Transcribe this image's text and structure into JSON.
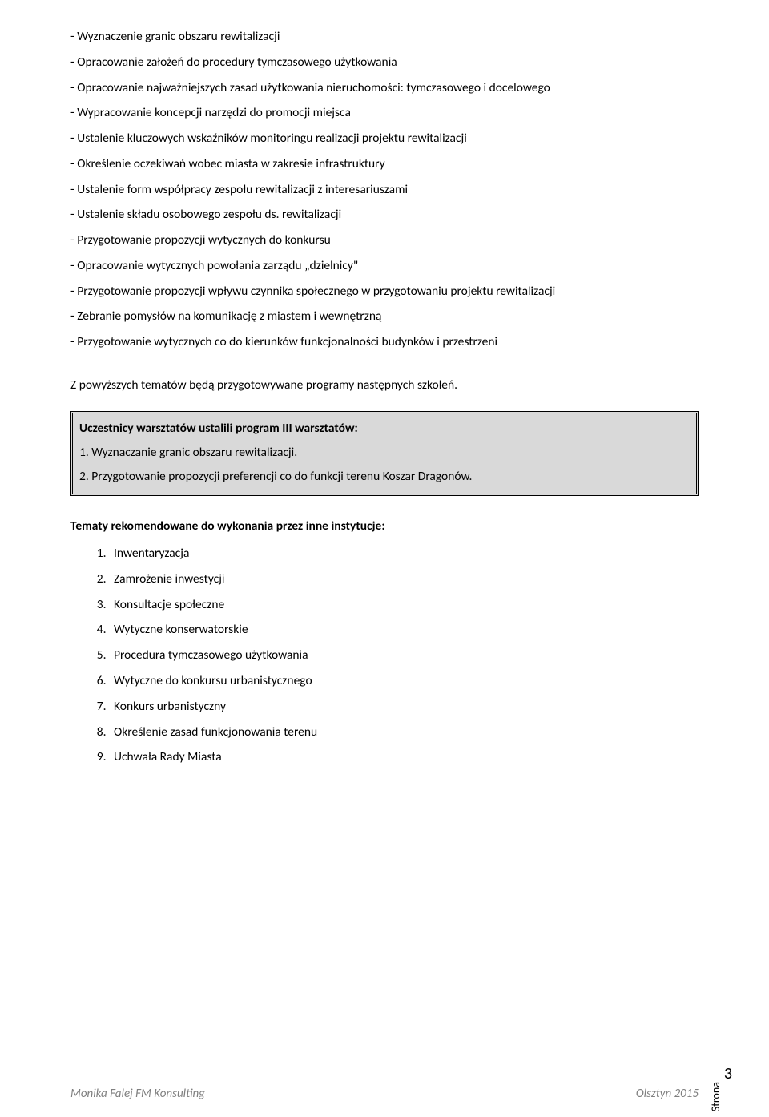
{
  "bullets": [
    "- Wyznaczenie granic obszaru rewitalizacji",
    "- Opracowanie założeń do procedury tymczasowego użytkowania",
    "- Opracowanie najważniejszych zasad użytkowania nieruchomości: tymczasowego i docelowego",
    "- Wypracowanie koncepcji narzędzi do promocji miejsca",
    "- Ustalenie kluczowych wskaźników monitoringu realizacji projektu rewitalizacji",
    "- Określenie oczekiwań wobec miasta w zakresie infrastruktury",
    "- Ustalenie form współpracy zespołu rewitalizacji z interesariuszami",
    "- Ustalenie składu osobowego zespołu ds. rewitalizacji",
    "- Przygotowanie propozycji wytycznych do konkursu",
    "- Opracowanie wytycznych powołania zarządu „dzielnicy\"",
    "- Przygotowanie propozycji wpływu czynnika społecznego w przygotowaniu projektu rewitalizacji",
    "- Zebranie pomysłów na komunikację z miastem i wewnętrzną",
    "- Przygotowanie wytycznych co do kierunków funkcjonalności budynków i przestrzeni"
  ],
  "summary": "Z powyższych tematów będą przygotowywane programy następnych szkoleń.",
  "box": {
    "heading": "Uczestnicy warsztatów ustalili program III warsztatów:",
    "line1": "1. Wyznaczanie granic obszaru rewitalizacji.",
    "line2": "2. Przygotowanie propozycji preferencji co do funkcji terenu Koszar Dragonów."
  },
  "rec_heading": "Tematy rekomendowane do wykonania przez inne instytucje:",
  "rec_items": [
    "Inwentaryzacja",
    "Zamrożenie inwestycji",
    "Konsultacje społeczne",
    "Wytyczne konserwatorskie",
    "Procedura tymczasowego użytkowania",
    "Wytyczne do konkursu urbanistycznego",
    "Konkurs urbanistyczny",
    "Określenie zasad funkcjonowania terenu",
    "Uchwała Rady Miasta"
  ],
  "footer": {
    "left": "Monika Falej FM Konsulting",
    "right": "Olsztyn 2015"
  },
  "page": {
    "label": "Strona",
    "number": "3"
  },
  "colors": {
    "background": "#ffffff",
    "text": "#000000",
    "box_bg": "#d9d9d9",
    "footer_text": "#7f7f7f"
  },
  "typography": {
    "body_fontsize": 15.5,
    "line_height": 2.05,
    "font_family": "Calibri"
  }
}
